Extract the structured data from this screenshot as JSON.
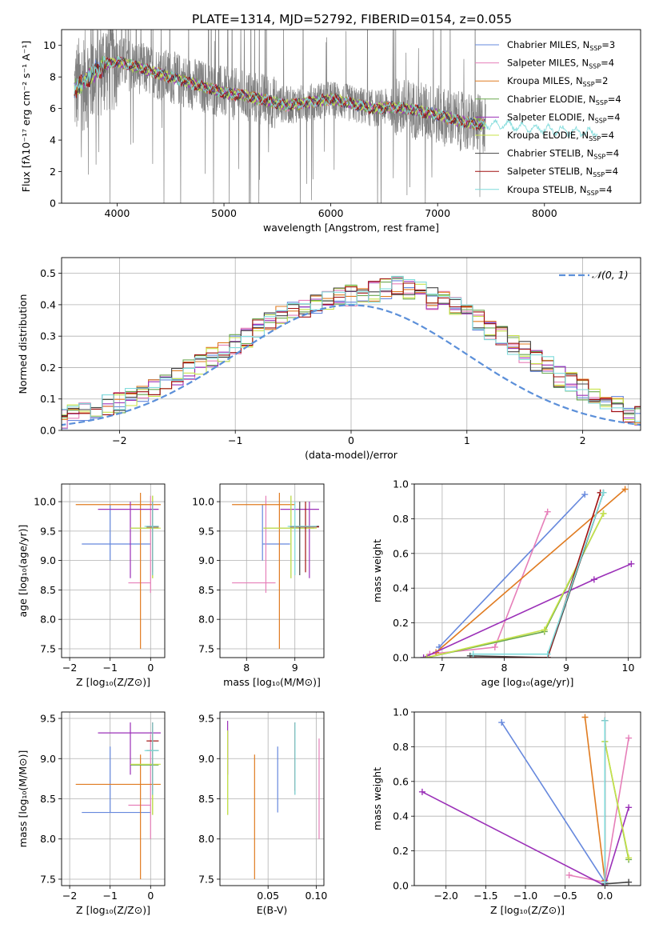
{
  "title": "PLATE=1314, MJD=52792, FIBERID=0154, z=0.055",
  "colors": {
    "chabrier_miles": "#6688dd",
    "salpeter_miles": "#e67fb9",
    "kroupa_miles": "#e07b20",
    "chabrier_elodie": "#6aa84f",
    "salpeter_elodie": "#9b30b8",
    "kroupa_elodie": "#c8e34a",
    "chabrier_stelib": "#444444",
    "salpeter_stelib": "#a01010",
    "kroupa_stelib": "#7fdbdb",
    "data": "#808080",
    "normal": "#5b8fd9",
    "grid": "#b0b0b0"
  },
  "chart_data": [
    {
      "id": "spectrum",
      "type": "line",
      "xlabel": "wavelength [Angstrom, rest frame]",
      "ylabel": "Flux [fλ10⁻¹⁷ erg cm⁻² s⁻¹ A⁻¹]",
      "xlim": [
        3480,
        8900
      ],
      "ylim": [
        0,
        11
      ],
      "xticks": [
        4000,
        5000,
        6000,
        7000,
        8000
      ],
      "yticks": [
        0,
        2,
        4,
        6,
        8,
        10
      ],
      "grid": false,
      "legend_position": "right",
      "legend": [
        {
          "base": "Chabrier MILES, N",
          "sub": "SSP",
          "tail": "=3",
          "color_key": "chabrier_miles"
        },
        {
          "base": "Salpeter MILES, N",
          "sub": "SSP",
          "tail": "=4",
          "color_key": "salpeter_miles"
        },
        {
          "base": "Kroupa MILES, N",
          "sub": "SSP",
          "tail": "=2",
          "color_key": "kroupa_miles"
        },
        {
          "base": "Chabrier ELODIE, N",
          "sub": "SSP",
          "tail": "=4",
          "color_key": "chabrier_elodie"
        },
        {
          "base": "Salpeter ELODIE, N",
          "sub": "SSP",
          "tail": "=4",
          "color_key": "salpeter_elodie"
        },
        {
          "base": "Kroupa ELODIE, N",
          "sub": "SSP",
          "tail": "=4",
          "color_key": "kroupa_elodie"
        },
        {
          "base": "Chabrier STELIB, N",
          "sub": "SSP",
          "tail": "=4",
          "color_key": "chabrier_stelib"
        },
        {
          "base": "Salpeter STELIB, N",
          "sub": "SSP",
          "tail": "=4",
          "color_key": "salpeter_stelib"
        },
        {
          "base": "Kroupa STELIB, N",
          "sub": "SSP",
          "tail": "=4",
          "color_key": "kroupa_stelib"
        }
      ],
      "continuum": {
        "wavelength": [
          3600,
          3700,
          3800,
          3900,
          4000,
          4200,
          4400,
          4600,
          4800,
          5000,
          5200,
          5400,
          5600,
          5800,
          6000,
          6200,
          6400,
          6600,
          6800,
          7000,
          7200,
          7400,
          7600,
          7800,
          8000,
          8200,
          8400,
          8600
        ],
        "flux": [
          7.2,
          7.8,
          8.4,
          8.8,
          9.0,
          8.6,
          8.2,
          7.8,
          7.4,
          7.0,
          6.8,
          6.5,
          6.2,
          6.4,
          6.6,
          6.3,
          6.0,
          6.1,
          5.9,
          5.6,
          5.2,
          5.0,
          5.0,
          4.8,
          4.7,
          4.6,
          4.5,
          4.5
        ]
      },
      "data_range": [
        3600,
        7450
      ]
    },
    {
      "id": "residuals",
      "type": "histogram",
      "xlabel": "(data-model)/error",
      "ylabel": "Normed distribution",
      "xlim": [
        -2.5,
        2.5
      ],
      "ylim": [
        0,
        0.55
      ],
      "xticks": [
        -2,
        -1,
        0,
        1,
        2
      ],
      "yticks": [
        0.0,
        0.1,
        0.2,
        0.3,
        0.4,
        0.5
      ],
      "grid": true,
      "legend_label": "𝒩(0, 1)",
      "legend_position": "top-right",
      "bin_width": 0.1,
      "base_values": [
        0.02,
        0.02,
        0.02,
        0.03,
        0.03,
        0.04,
        0.05,
        0.06,
        0.07,
        0.08,
        0.09,
        0.1,
        0.11,
        0.13,
        0.15,
        0.17,
        0.19,
        0.21,
        0.23,
        0.25,
        0.27,
        0.3,
        0.32,
        0.34,
        0.36,
        0.38,
        0.39,
        0.4,
        0.41,
        0.42,
        0.43,
        0.44,
        0.44,
        0.45,
        0.46,
        0.45,
        0.44,
        0.42,
        0.41,
        0.39,
        0.37,
        0.35,
        0.32,
        0.3,
        0.27,
        0.25,
        0.22,
        0.2,
        0.17,
        0.15,
        0.13,
        0.11,
        0.09,
        0.08,
        0.06,
        0.05,
        0.04,
        0.03,
        0.03,
        0.02,
        0.02
      ]
    },
    {
      "id": "z_age",
      "type": "errorbar",
      "xlabel": "Z [log₁₀(Z/Z⊙)]",
      "ylabel": "age  [log₁₀(age/yr)]",
      "xlim": [
        -2.2,
        0.35
      ],
      "ylim": [
        7.35,
        10.3
      ],
      "xticks": [
        -2,
        -1,
        0
      ],
      "yticks": [
        7.5,
        8.0,
        8.5,
        9.0,
        9.5,
        10.0
      ],
      "grid": true,
      "points": [
        {
          "k": "chabrier_miles",
          "x": -1.0,
          "y": 9.28,
          "xe": [
            -1.7,
            0.0
          ],
          "ye": [
            9.0,
            9.95
          ]
        },
        {
          "k": "salpeter_miles",
          "x": 0.0,
          "y": 8.62,
          "xe": [
            -0.55,
            0.0
          ],
          "ye": [
            8.45,
            10.1
          ]
        },
        {
          "k": "kroupa_miles",
          "x": -0.25,
          "y": 9.95,
          "xe": [
            -1.85,
            0.25
          ],
          "ye": [
            7.5,
            10.15
          ]
        },
        {
          "k": "chabrier_elodie",
          "x": 0.05,
          "y": 9.55,
          "xe": [
            -0.5,
            0.2
          ],
          "ye": [
            8.7,
            10.1
          ]
        },
        {
          "k": "salpeter_elodie",
          "x": -0.5,
          "y": 9.87,
          "xe": [
            -1.3,
            0.2
          ],
          "ye": [
            8.7,
            10.0
          ]
        },
        {
          "k": "kroupa_elodie",
          "x": 0.05,
          "y": 9.55,
          "xe": [
            -0.5,
            0.25
          ],
          "ye": [
            8.7,
            10.1
          ]
        },
        {
          "k": "chabrier_stelib",
          "x": 0.05,
          "y": 9.58,
          "xe": [
            -0.1,
            0.2
          ],
          "ye": [
            8.75,
            10.0
          ]
        },
        {
          "k": "salpeter_stelib",
          "x": 0.05,
          "y": 9.57,
          "xe": [
            -0.1,
            0.2
          ],
          "ye": [
            8.8,
            10.0
          ]
        },
        {
          "k": "kroupa_stelib",
          "x": 0.05,
          "y": 9.58,
          "xe": [
            -0.15,
            0.2
          ],
          "ye": [
            8.75,
            10.0
          ]
        }
      ]
    },
    {
      "id": "mass_age",
      "type": "errorbar",
      "xlabel": "mass [log₁₀(M/M⊙)]",
      "ylabel": "",
      "xlim": [
        7.45,
        9.6
      ],
      "ylim": [
        7.35,
        10.3
      ],
      "xticks": [
        8,
        9
      ],
      "yticks": [
        7.5,
        8.0,
        8.5,
        9.0,
        9.5,
        10.0
      ],
      "grid": true,
      "points": [
        {
          "k": "chabrier_miles",
          "x": 8.33,
          "y": 9.28,
          "xe": [
            8.33,
            8.9
          ],
          "ye": [
            9.0,
            9.95
          ]
        },
        {
          "k": "salpeter_miles",
          "x": 8.4,
          "y": 8.62,
          "xe": [
            7.7,
            8.6
          ],
          "ye": [
            8.45,
            10.1
          ]
        },
        {
          "k": "kroupa_miles",
          "x": 8.68,
          "y": 9.95,
          "xe": [
            7.7,
            9.0
          ],
          "ye": [
            7.5,
            10.15
          ]
        },
        {
          "k": "chabrier_elodie",
          "x": 8.92,
          "y": 9.55,
          "xe": [
            8.35,
            9.4
          ],
          "ye": [
            8.7,
            10.1
          ]
        },
        {
          "k": "salpeter_elodie",
          "x": 9.3,
          "y": 9.87,
          "xe": [
            8.7,
            9.5
          ],
          "ye": [
            8.7,
            10.0
          ]
        },
        {
          "k": "kroupa_elodie",
          "x": 8.92,
          "y": 9.55,
          "xe": [
            8.35,
            9.45
          ],
          "ye": [
            8.7,
            10.1
          ]
        },
        {
          "k": "chabrier_stelib",
          "x": 9.1,
          "y": 9.58,
          "xe": [
            8.9,
            9.5
          ],
          "ye": [
            8.75,
            10.0
          ]
        },
        {
          "k": "salpeter_stelib",
          "x": 9.22,
          "y": 9.57,
          "xe": [
            8.9,
            9.5
          ],
          "ye": [
            8.8,
            10.0
          ]
        },
        {
          "k": "kroupa_stelib",
          "x": 9.0,
          "y": 9.58,
          "xe": [
            8.85,
            9.45
          ],
          "ye": [
            8.75,
            10.0
          ]
        }
      ]
    },
    {
      "id": "age_weight",
      "type": "line",
      "xlabel": "age  [log₁₀(age/yr)]",
      "ylabel": "mass weight",
      "xlim": [
        6.55,
        10.2
      ],
      "ylim": [
        0,
        1.0
      ],
      "xticks": [
        7,
        8,
        9,
        10
      ],
      "yticks": [
        0.0,
        0.2,
        0.4,
        0.6,
        0.8,
        1.0
      ],
      "grid": true,
      "series": [
        {
          "k": "chabrier_miles",
          "x": [
            6.95,
            9.3
          ],
          "y": [
            0.06,
            0.94
          ]
        },
        {
          "k": "salpeter_miles",
          "x": [
            6.8,
            7.85,
            8.7
          ],
          "y": [
            0.02,
            0.06,
            0.84
          ]
        },
        {
          "k": "kroupa_miles",
          "x": [
            6.9,
            9.95
          ],
          "y": [
            0.03,
            0.97
          ]
        },
        {
          "k": "chabrier_elodie",
          "x": [
            6.75,
            8.65,
            9.6
          ],
          "y": [
            0.0,
            0.15,
            0.83
          ]
        },
        {
          "k": "salpeter_elodie",
          "x": [
            6.7,
            9.45,
            10.05
          ],
          "y": [
            0.0,
            0.45,
            0.54
          ]
        },
        {
          "k": "kroupa_elodie",
          "x": [
            6.75,
            8.65,
            9.6
          ],
          "y": [
            0.0,
            0.16,
            0.83
          ]
        },
        {
          "k": "chabrier_stelib",
          "x": [
            7.45,
            8.7,
            9.6
          ],
          "y": [
            0.01,
            0.0,
            0.95
          ]
        },
        {
          "k": "salpeter_stelib",
          "x": [
            7.5,
            8.7,
            9.55
          ],
          "y": [
            0.0,
            0.0,
            0.95
          ]
        },
        {
          "k": "kroupa_stelib",
          "x": [
            7.5,
            8.7,
            9.6
          ],
          "y": [
            0.02,
            0.02,
            0.95
          ]
        }
      ]
    },
    {
      "id": "z_mass",
      "type": "errorbar",
      "xlabel": "Z [log₁₀(Z/Z⊙)]",
      "ylabel": "mass [log₁₀(M/M⊙)]",
      "xlim": [
        -2.2,
        0.35
      ],
      "ylim": [
        7.42,
        9.58
      ],
      "xticks": [
        -2,
        -1,
        0
      ],
      "yticks": [
        7.5,
        8.0,
        8.5,
        9.0,
        9.5
      ],
      "grid": true,
      "points": [
        {
          "k": "chabrier_miles",
          "x": -1.0,
          "y": 8.33,
          "xe": [
            -1.7,
            0.0
          ],
          "ye": [
            8.33,
            9.15
          ]
        },
        {
          "k": "salpeter_miles",
          "x": 0.0,
          "y": 8.42,
          "xe": [
            -0.55,
            0.0
          ],
          "ye": [
            8.0,
            9.3
          ]
        },
        {
          "k": "kroupa_miles",
          "x": -0.25,
          "y": 8.68,
          "xe": [
            -1.85,
            0.25
          ],
          "ye": [
            7.5,
            9.05
          ]
        },
        {
          "k": "chabrier_elodie",
          "x": 0.05,
          "y": 8.92,
          "xe": [
            -0.5,
            0.2
          ],
          "ye": [
            8.3,
            9.3
          ]
        },
        {
          "k": "salpeter_elodie",
          "x": -0.5,
          "y": 9.32,
          "xe": [
            -1.3,
            0.25
          ],
          "ye": [
            8.8,
            9.45
          ]
        },
        {
          "k": "kroupa_elodie",
          "x": 0.05,
          "y": 8.93,
          "xe": [
            -0.5,
            0.25
          ],
          "ye": [
            8.3,
            9.35
          ]
        },
        {
          "k": "chabrier_stelib",
          "x": 0.05,
          "y": 9.1,
          "xe": [
            -0.1,
            0.2
          ],
          "ye": [
            8.55,
            9.45
          ]
        },
        {
          "k": "salpeter_stelib",
          "x": 0.05,
          "y": 9.22,
          "xe": [
            -0.1,
            0.2
          ],
          "ye": [
            8.6,
            9.45
          ]
        },
        {
          "k": "kroupa_stelib",
          "x": 0.05,
          "y": 9.1,
          "xe": [
            -0.15,
            0.2
          ],
          "ye": [
            8.55,
            9.45
          ]
        }
      ]
    },
    {
      "id": "ebv_mass",
      "type": "errorbar",
      "xlabel": "E(B-V)",
      "ylabel": "",
      "xlim": [
        0.0,
        0.108
      ],
      "ylim": [
        7.42,
        9.58
      ],
      "xticks": [
        0.05,
        0.1
      ],
      "yticks": [
        7.5,
        8.0,
        8.5,
        9.0,
        9.5
      ],
      "grid": true,
      "points": [
        {
          "k": "chabrier_miles",
          "x": 0.06,
          "y": 8.33,
          "xe": [
            0.06,
            0.06
          ],
          "ye": [
            8.33,
            9.15
          ]
        },
        {
          "k": "salpeter_miles",
          "x": 0.103,
          "y": 8.42,
          "xe": [
            0.103,
            0.103
          ],
          "ye": [
            8.0,
            9.25
          ]
        },
        {
          "k": "kroupa_miles",
          "x": 0.036,
          "y": 8.68,
          "xe": [
            0.036,
            0.036
          ],
          "ye": [
            7.5,
            9.05
          ]
        },
        {
          "k": "chabrier_elodie",
          "x": 0.008,
          "y": 8.92,
          "xe": [
            0.008,
            0.008
          ],
          "ye": [
            8.3,
            9.35
          ]
        },
        {
          "k": "salpeter_elodie",
          "x": 0.008,
          "y": 9.32,
          "xe": [
            0.008,
            0.008
          ],
          "ye": [
            8.8,
            9.47
          ]
        },
        {
          "k": "kroupa_elodie",
          "x": 0.008,
          "y": 8.93,
          "xe": [
            0.008,
            0.008
          ],
          "ye": [
            8.3,
            9.35
          ]
        },
        {
          "k": "chabrier_stelib",
          "x": 0.078,
          "y": 9.1,
          "xe": [
            0.078,
            0.078
          ],
          "ye": [
            8.55,
            9.45
          ]
        },
        {
          "k": "salpeter_stelib",
          "x": 0.078,
          "y": 9.22,
          "xe": [
            0.078,
            0.078
          ],
          "ye": [
            8.6,
            9.45
          ]
        },
        {
          "k": "kroupa_stelib",
          "x": 0.078,
          "y": 9.1,
          "xe": [
            0.078,
            0.078
          ],
          "ye": [
            8.55,
            9.45
          ]
        }
      ]
    },
    {
      "id": "z_weight",
      "type": "line",
      "xlabel": "Z [log₁₀(Z/Z⊙)]",
      "ylabel": "mass weight",
      "xlim": [
        -2.4,
        0.45
      ],
      "ylim": [
        0,
        1.0
      ],
      "xticks": [
        -2.0,
        -1.5,
        -1.0,
        -0.5,
        0.0
      ],
      "yticks": [
        0.0,
        0.2,
        0.4,
        0.6,
        0.8,
        1.0
      ],
      "grid": true,
      "series": [
        {
          "k": "chabrier_miles",
          "x": [
            -1.3,
            0.0
          ],
          "y": [
            0.94,
            0.02
          ]
        },
        {
          "k": "salpeter_miles",
          "x": [
            -0.45,
            0.0,
            0.3
          ],
          "y": [
            0.06,
            0.02,
            0.85
          ]
        },
        {
          "k": "kroupa_miles",
          "x": [
            -0.25,
            0.0
          ],
          "y": [
            0.97,
            0.03
          ]
        },
        {
          "k": "chabrier_elodie",
          "x": [
            0.0,
            0.3
          ],
          "y": [
            0.83,
            0.15
          ]
        },
        {
          "k": "salpeter_elodie",
          "x": [
            -2.3,
            0.0,
            0.3
          ],
          "y": [
            0.54,
            0.0,
            0.45
          ]
        },
        {
          "k": "kroupa_elodie",
          "x": [
            0.0,
            0.3
          ],
          "y": [
            0.83,
            0.16
          ]
        },
        {
          "k": "chabrier_stelib",
          "x": [
            0.0,
            0.0,
            0.3
          ],
          "y": [
            0.95,
            0.01,
            0.02
          ]
        },
        {
          "k": "salpeter_stelib",
          "x": [
            0.0,
            0.0
          ],
          "y": [
            0.95,
            0.0
          ]
        },
        {
          "k": "kroupa_stelib",
          "x": [
            0.0,
            0.0
          ],
          "y": [
            0.95,
            0.02
          ]
        }
      ]
    }
  ]
}
